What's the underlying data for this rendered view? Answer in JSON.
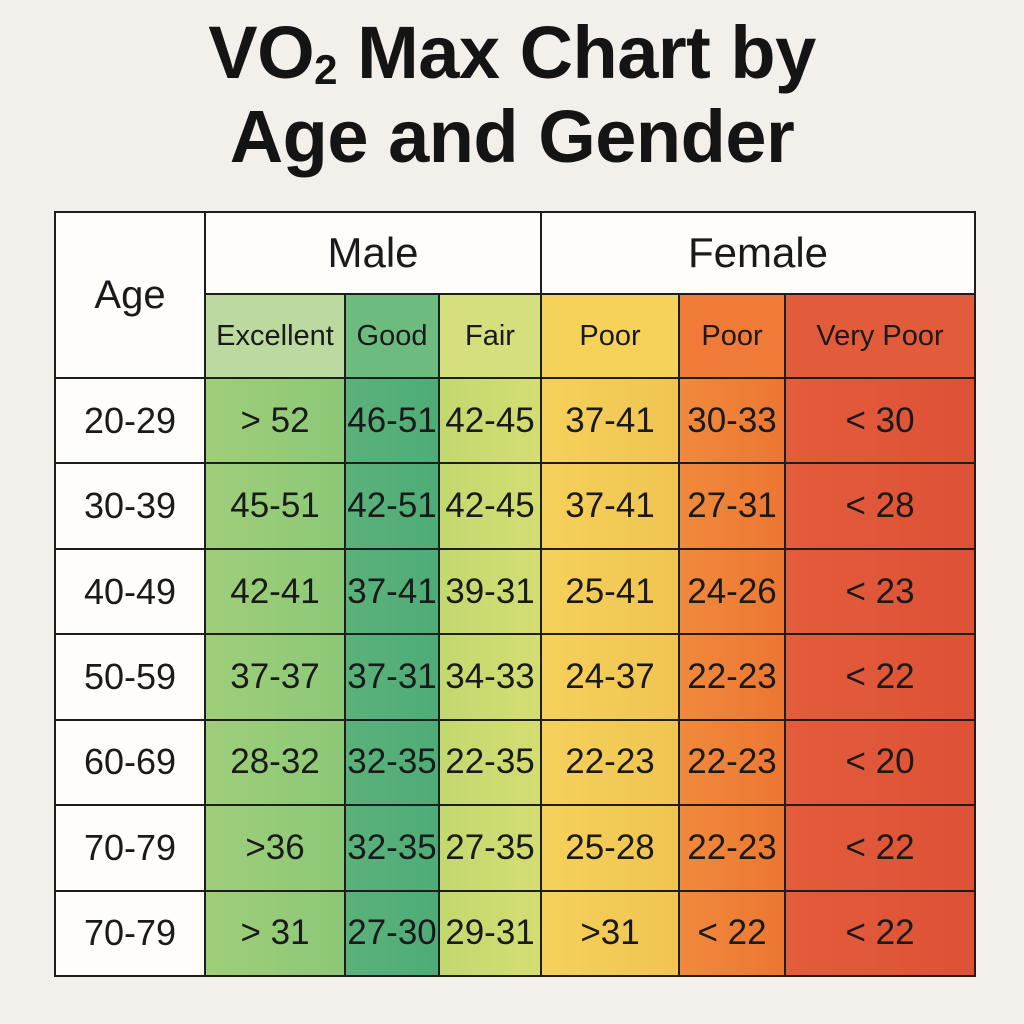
{
  "title": {
    "line1_pre": "VO",
    "line1_sub": "2",
    "line1_post": " Max Chart by",
    "line2": "Age and Gender"
  },
  "chart_data": {
    "type": "table",
    "title": "VO2 Max Chart by Age and Gender",
    "age_header": "Age",
    "groups": [
      {
        "label": "Male",
        "span": 3
      },
      {
        "label": "Female",
        "span": 3
      }
    ],
    "categories": [
      "Excellent",
      "Good",
      "Fair",
      "Poor",
      "Poor",
      "Very Poor"
    ],
    "colors": {
      "excellent": "#9fce7a",
      "good": "#5ab27a",
      "fair": "#d0dc72",
      "poor_1": "#f4d15a",
      "poor_2": "#ee7f37",
      "very_poor": "#e0573a"
    },
    "rows": [
      {
        "age": "20-29",
        "values": [
          "> 52",
          "46-51",
          "42-45",
          "37-41",
          "30-33",
          "< 30"
        ]
      },
      {
        "age": "30-39",
        "values": [
          "45-51",
          "42-51",
          "42-45",
          "37-41",
          "27-31",
          "< 28"
        ]
      },
      {
        "age": "40-49",
        "values": [
          "42-41",
          "37-41",
          "39-31",
          "25-41",
          "24-26",
          "< 23"
        ]
      },
      {
        "age": "50-59",
        "values": [
          "37-37",
          "37-31",
          "34-33",
          "24-37",
          "22-23",
          "< 22"
        ]
      },
      {
        "age": "60-69",
        "values": [
          "28-32",
          "32-35",
          "22-35",
          "22-23",
          "22-23",
          "< 20"
        ]
      },
      {
        "age": "70-79",
        "values": [
          ">36",
          "32-35",
          "27-35",
          "25-28",
          "22-23",
          "< 22"
        ]
      },
      {
        "age": "70-79",
        "values": [
          "> 31",
          "27-30",
          "29-31",
          ">31",
          "< 22",
          "< 22"
        ]
      }
    ]
  }
}
